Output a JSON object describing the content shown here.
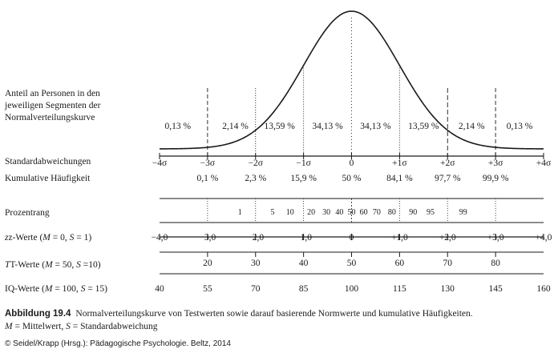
{
  "curve_label_lines": [
    "Anteil an Personen in den",
    "jeweiligen Segmenten der",
    "Normalverteilungskurve"
  ],
  "segment_percentages": [
    "0,13 %",
    "2,14 %",
    "13,59 %",
    "34,13 %",
    "34,13 %",
    "13,59 %",
    "2,14 %",
    "0,13 %"
  ],
  "sd_label": "Standardabweichungen",
  "sd_ticks": [
    "−4σ",
    "−3σ",
    "−2σ",
    "−1σ",
    "0",
    "+1σ",
    "+2σ",
    "+3σ",
    "+4σ"
  ],
  "cum_label": "Kumulative Häufigkeit",
  "cum_values": [
    "0,1 %",
    "2,3 %",
    "15,9 %",
    "50 %",
    "84,1 %",
    "97,7 %",
    "99,9 %"
  ],
  "pr_label": "Prozentrang",
  "pr_values": [
    "1",
    "5",
    "10",
    "20",
    "30",
    "40",
    "50",
    "60",
    "70",
    "80",
    "90",
    "95",
    "99"
  ],
  "z_label": {
    "prefix": "z-Werte (",
    "m": "M",
    "m_val": " = 0, ",
    "s": "S",
    "s_val": " = 1)"
  },
  "z_values": [
    "−4,0",
    "−3,0",
    "−2,0",
    "−1,0",
    "0",
    "+1,0",
    "+2,0",
    "+3,0",
    "+4,0"
  ],
  "t_label": {
    "prefix": "T-Werte (",
    "m": "M",
    "m_val": " = 50, ",
    "s": "S",
    "s_val": " =10)"
  },
  "t_values": [
    "20",
    "30",
    "40",
    "50",
    "60",
    "70",
    "80"
  ],
  "iq_label": {
    "prefix": "IQ-Werte (",
    "m": "M",
    "m_val": " = 100, ",
    "s": "S",
    "s_val": " = 15)"
  },
  "iq_values": [
    "40",
    "55",
    "70",
    "85",
    "100",
    "115",
    "130",
    "145",
    "160"
  ],
  "caption_bold": "Abbildung 19.4",
  "caption_text": "Normalverteilungskurve von Testwerten sowie darauf basierende Normwerte und kumulative Häufigkeiten.",
  "caption_line2": {
    "m": "M",
    "m_text": " = Mittelwert, ",
    "s": "S",
    "s_text": " = Standardabweichung"
  },
  "copyright": "© Seidel/Krapp (Hrsg.): Pädagogische Psychologie. Beltz, 2014"
}
